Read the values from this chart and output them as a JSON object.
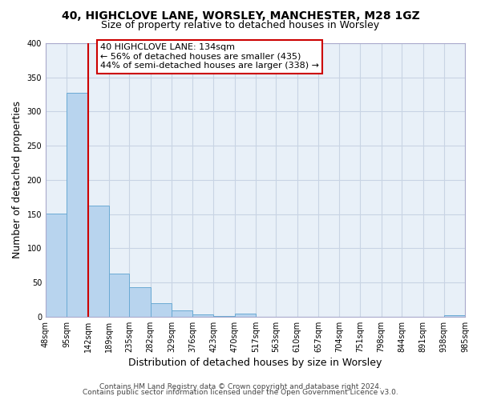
{
  "title1": "40, HIGHCLOVE LANE, WORSLEY, MANCHESTER, M28 1GZ",
  "title2": "Size of property relative to detached houses in Worsley",
  "xlabel": "Distribution of detached houses by size in Worsley",
  "ylabel": "Number of detached properties",
  "bin_edges": [
    48,
    95,
    142,
    189,
    235,
    282,
    329,
    376,
    423,
    470,
    517,
    563,
    610,
    657,
    704,
    751,
    798,
    844,
    891,
    938,
    985
  ],
  "bin_heights": [
    151,
    328,
    163,
    63,
    43,
    20,
    9,
    3,
    1,
    4,
    0,
    0,
    0,
    0,
    0,
    0,
    0,
    0,
    0,
    2
  ],
  "bar_color": "#b8d4ee",
  "bar_edge_color": "#6aaad4",
  "vline_x": 142,
  "vline_color": "#cc0000",
  "annotation_text": "40 HIGHCLOVE LANE: 134sqm\n← 56% of detached houses are smaller (435)\n44% of semi-detached houses are larger (338) →",
  "annotation_box_color": "#ffffff",
  "annotation_box_edge_color": "#cc0000",
  "ylim": [
    0,
    400
  ],
  "yticks": [
    0,
    50,
    100,
    150,
    200,
    250,
    300,
    350,
    400
  ],
  "xtick_labels": [
    "48sqm",
    "95sqm",
    "142sqm",
    "189sqm",
    "235sqm",
    "282sqm",
    "329sqm",
    "376sqm",
    "423sqm",
    "470sqm",
    "517sqm",
    "563sqm",
    "610sqm",
    "657sqm",
    "704sqm",
    "751sqm",
    "798sqm",
    "844sqm",
    "891sqm",
    "938sqm",
    "985sqm"
  ],
  "footer1": "Contains HM Land Registry data © Crown copyright and database right 2024.",
  "footer2": "Contains public sector information licensed under the Open Government Licence v3.0.",
  "bg_color": "#ffffff",
  "plot_bg_color": "#e8f0f8",
  "grid_color": "#c8d4e4",
  "title_fontsize": 10,
  "subtitle_fontsize": 9,
  "axis_label_fontsize": 9,
  "tick_fontsize": 7,
  "footer_fontsize": 6.5,
  "annotation_fontsize": 8
}
